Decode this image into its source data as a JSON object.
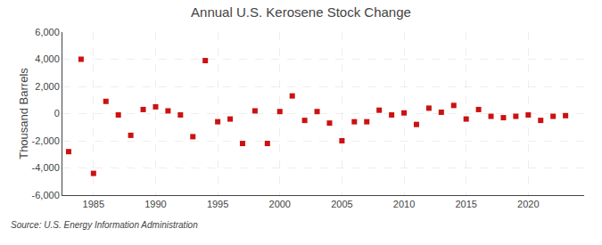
{
  "chart_data": {
    "type": "scatter",
    "title": "Annual U.S. Kerosene Stock Change",
    "ylabel": "Thousand Barrels",
    "annotations": [
      "Source: U.S. Energy Information Administration"
    ],
    "x": [
      1983,
      1984,
      1985,
      1986,
      1987,
      1988,
      1989,
      1990,
      1991,
      1992,
      1993,
      1994,
      1995,
      1996,
      1997,
      1998,
      1999,
      2000,
      2001,
      2002,
      2003,
      2004,
      2005,
      2006,
      2007,
      2008,
      2009,
      2010,
      2011,
      2012,
      2013,
      2014,
      2015,
      2016,
      2017,
      2018,
      2019,
      2020,
      2021,
      2022,
      2023
    ],
    "values": [
      -2800,
      4000,
      -4400,
      900,
      -100,
      -1600,
      300,
      500,
      200,
      -100,
      -1700,
      3900,
      -600,
      -400,
      -2200,
      200,
      -2200,
      150,
      1300,
      -500,
      150,
      -700,
      -2000,
      -600,
      -600,
      250,
      -100,
      50,
      -800,
      400,
      100,
      600,
      -400,
      300,
      -200,
      -300,
      -200,
      -100,
      -500,
      -200,
      -150
    ],
    "color": "#cc1111",
    "marker": "square",
    "xlim": [
      1982.5,
      2024.5
    ],
    "xticks": [
      1985,
      1990,
      1995,
      2000,
      2005,
      2010,
      2015,
      2020
    ],
    "ylim": [
      -6000,
      6000
    ],
    "yticks": [
      {
        "value": -6000,
        "label": "-6,000"
      },
      {
        "value": -4000,
        "label": "-4,000"
      },
      {
        "value": -2000,
        "label": "-2,000"
      },
      0,
      {
        "value": 2000,
        "label": "2,000"
      },
      {
        "value": 4000,
        "label": "4,000"
      },
      {
        "value": 6000,
        "label": "6,000"
      }
    ],
    "grid": true
  }
}
